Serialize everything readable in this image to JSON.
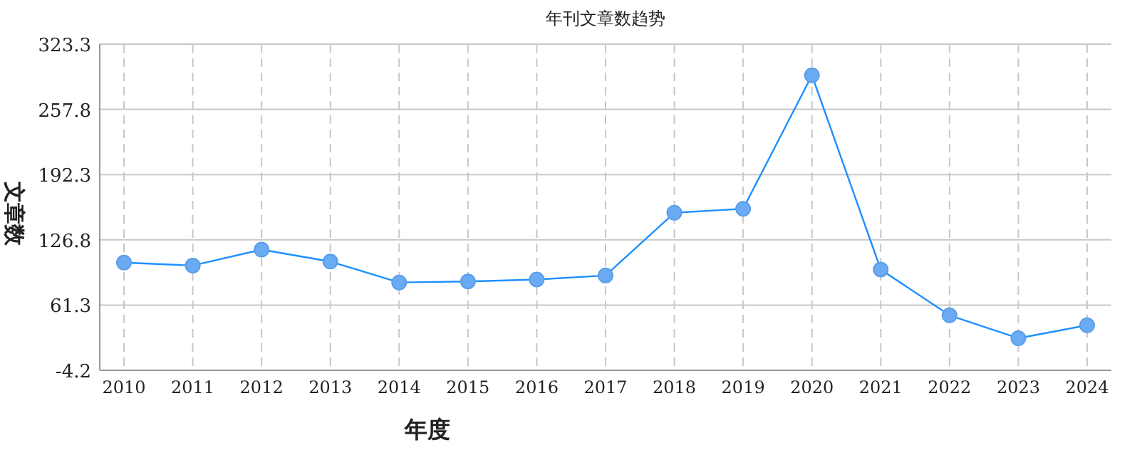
{
  "chart_data": {
    "type": "line",
    "title": "年刊文章数趋势",
    "xlabel": "年度",
    "ylabel": "文章数",
    "categories": [
      "2010",
      "2011",
      "2012",
      "2013",
      "2014",
      "2015",
      "2016",
      "2017",
      "2018",
      "2019",
      "2020",
      "2021",
      "2022",
      "2023",
      "2024"
    ],
    "series": [
      {
        "color": "#1e90ff",
        "values": [
          104,
          101,
          117,
          105,
          84,
          85,
          87,
          91,
          154,
          158,
          292,
          97,
          51,
          28,
          41
        ]
      }
    ],
    "ylim": [
      -4.2,
      323.3
    ],
    "yticks": [
      -4.2,
      61.3,
      126.8,
      192.3,
      257.8,
      323.3
    ],
    "grid": true,
    "marker": "circle"
  }
}
